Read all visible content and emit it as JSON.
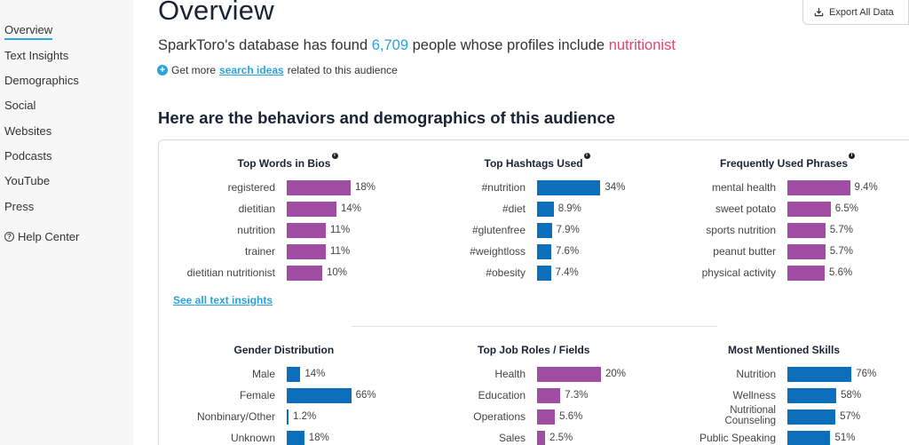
{
  "sidebar": {
    "items": [
      {
        "label": "Overview",
        "active": true
      },
      {
        "label": "Text Insights"
      },
      {
        "label": "Demographics"
      },
      {
        "label": "Social"
      },
      {
        "label": "Websites"
      },
      {
        "label": "Podcasts"
      },
      {
        "label": "YouTube"
      },
      {
        "label": "Press"
      }
    ],
    "help": {
      "icon": "question-circle-icon",
      "label": "Help Center"
    }
  },
  "header": {
    "title": "Overview",
    "export_label": "Export All Data",
    "summary_prefix": "SparkToro's database has found",
    "summary_count": "6,709",
    "summary_middle": "people whose profiles include",
    "summary_keyword": "nutritionist",
    "ideas_prefix": "Get more",
    "ideas_link": "search ideas",
    "ideas_suffix": "related to this audience"
  },
  "section_title": "Here are the behaviors and demographics of this audience",
  "see_all_label": "See all text insights",
  "colors": {
    "accent": "#2aa3d9",
    "keyword": "#e0456a",
    "purple_bar": "#a04ca3",
    "blue_bar": "#0b6fbb"
  },
  "panels": [
    {
      "title": "Top Words in Bios",
      "info": true,
      "color": "purple",
      "rows": [
        {
          "label": "registered",
          "value": "18%",
          "pct": 18
        },
        {
          "label": "dietitian",
          "value": "14%",
          "pct": 14
        },
        {
          "label": "nutrition",
          "value": "11%",
          "pct": 11
        },
        {
          "label": "trainer",
          "value": "11%",
          "pct": 11
        },
        {
          "label": "dietitian nutritionist",
          "value": "10%",
          "pct": 10
        }
      ]
    },
    {
      "title": "Top Hashtags Used",
      "info": true,
      "color": "blue",
      "rows": [
        {
          "label": "#nutrition",
          "value": "34%",
          "pct": 34
        },
        {
          "label": "#diet",
          "value": "8.9%",
          "pct": 8.9
        },
        {
          "label": "#glutenfree",
          "value": "7.9%",
          "pct": 7.9
        },
        {
          "label": "#weightloss",
          "value": "7.6%",
          "pct": 7.6
        },
        {
          "label": "#obesity",
          "value": "7.4%",
          "pct": 7.4
        }
      ]
    },
    {
      "title": "Frequently Used Phrases",
      "info": true,
      "color": "purple",
      "rows": [
        {
          "label": "mental health",
          "value": "9.4%",
          "pct": 9.4
        },
        {
          "label": "sweet potato",
          "value": "6.5%",
          "pct": 6.5
        },
        {
          "label": "sports nutrition",
          "value": "5.7%",
          "pct": 5.7
        },
        {
          "label": "peanut butter",
          "value": "5.7%",
          "pct": 5.7
        },
        {
          "label": "physical activity",
          "value": "5.6%",
          "pct": 5.6
        }
      ]
    },
    {
      "title": "Gender Distribution",
      "info": false,
      "color": "blue",
      "rows": [
        {
          "label": "Male",
          "value": "14%",
          "pct": 14
        },
        {
          "label": "Female",
          "value": "66%",
          "pct": 66
        },
        {
          "label": "Nonbinary/Other",
          "value": "1.2%",
          "pct": 1.2
        },
        {
          "label": "Unknown",
          "value": "18%",
          "pct": 18
        }
      ]
    },
    {
      "title": "Top Job Roles / Fields",
      "info": false,
      "color": "purple",
      "rows": [
        {
          "label": "Health",
          "value": "20%",
          "pct": 20
        },
        {
          "label": "Education",
          "value": "7.3%",
          "pct": 7.3
        },
        {
          "label": "Operations",
          "value": "5.6%",
          "pct": 5.6
        },
        {
          "label": "Sales",
          "value": "2.5%",
          "pct": 2.5
        }
      ]
    },
    {
      "title": "Most Mentioned Skills",
      "info": false,
      "color": "blue",
      "rows": [
        {
          "label": "Nutrition",
          "value": "76%",
          "pct": 76
        },
        {
          "label": "Wellness",
          "value": "58%",
          "pct": 58
        },
        {
          "label": "Nutritional Counseling",
          "value": "57%",
          "pct": 57
        },
        {
          "label": "Public Speaking",
          "value": "51%",
          "pct": 51
        }
      ]
    }
  ]
}
